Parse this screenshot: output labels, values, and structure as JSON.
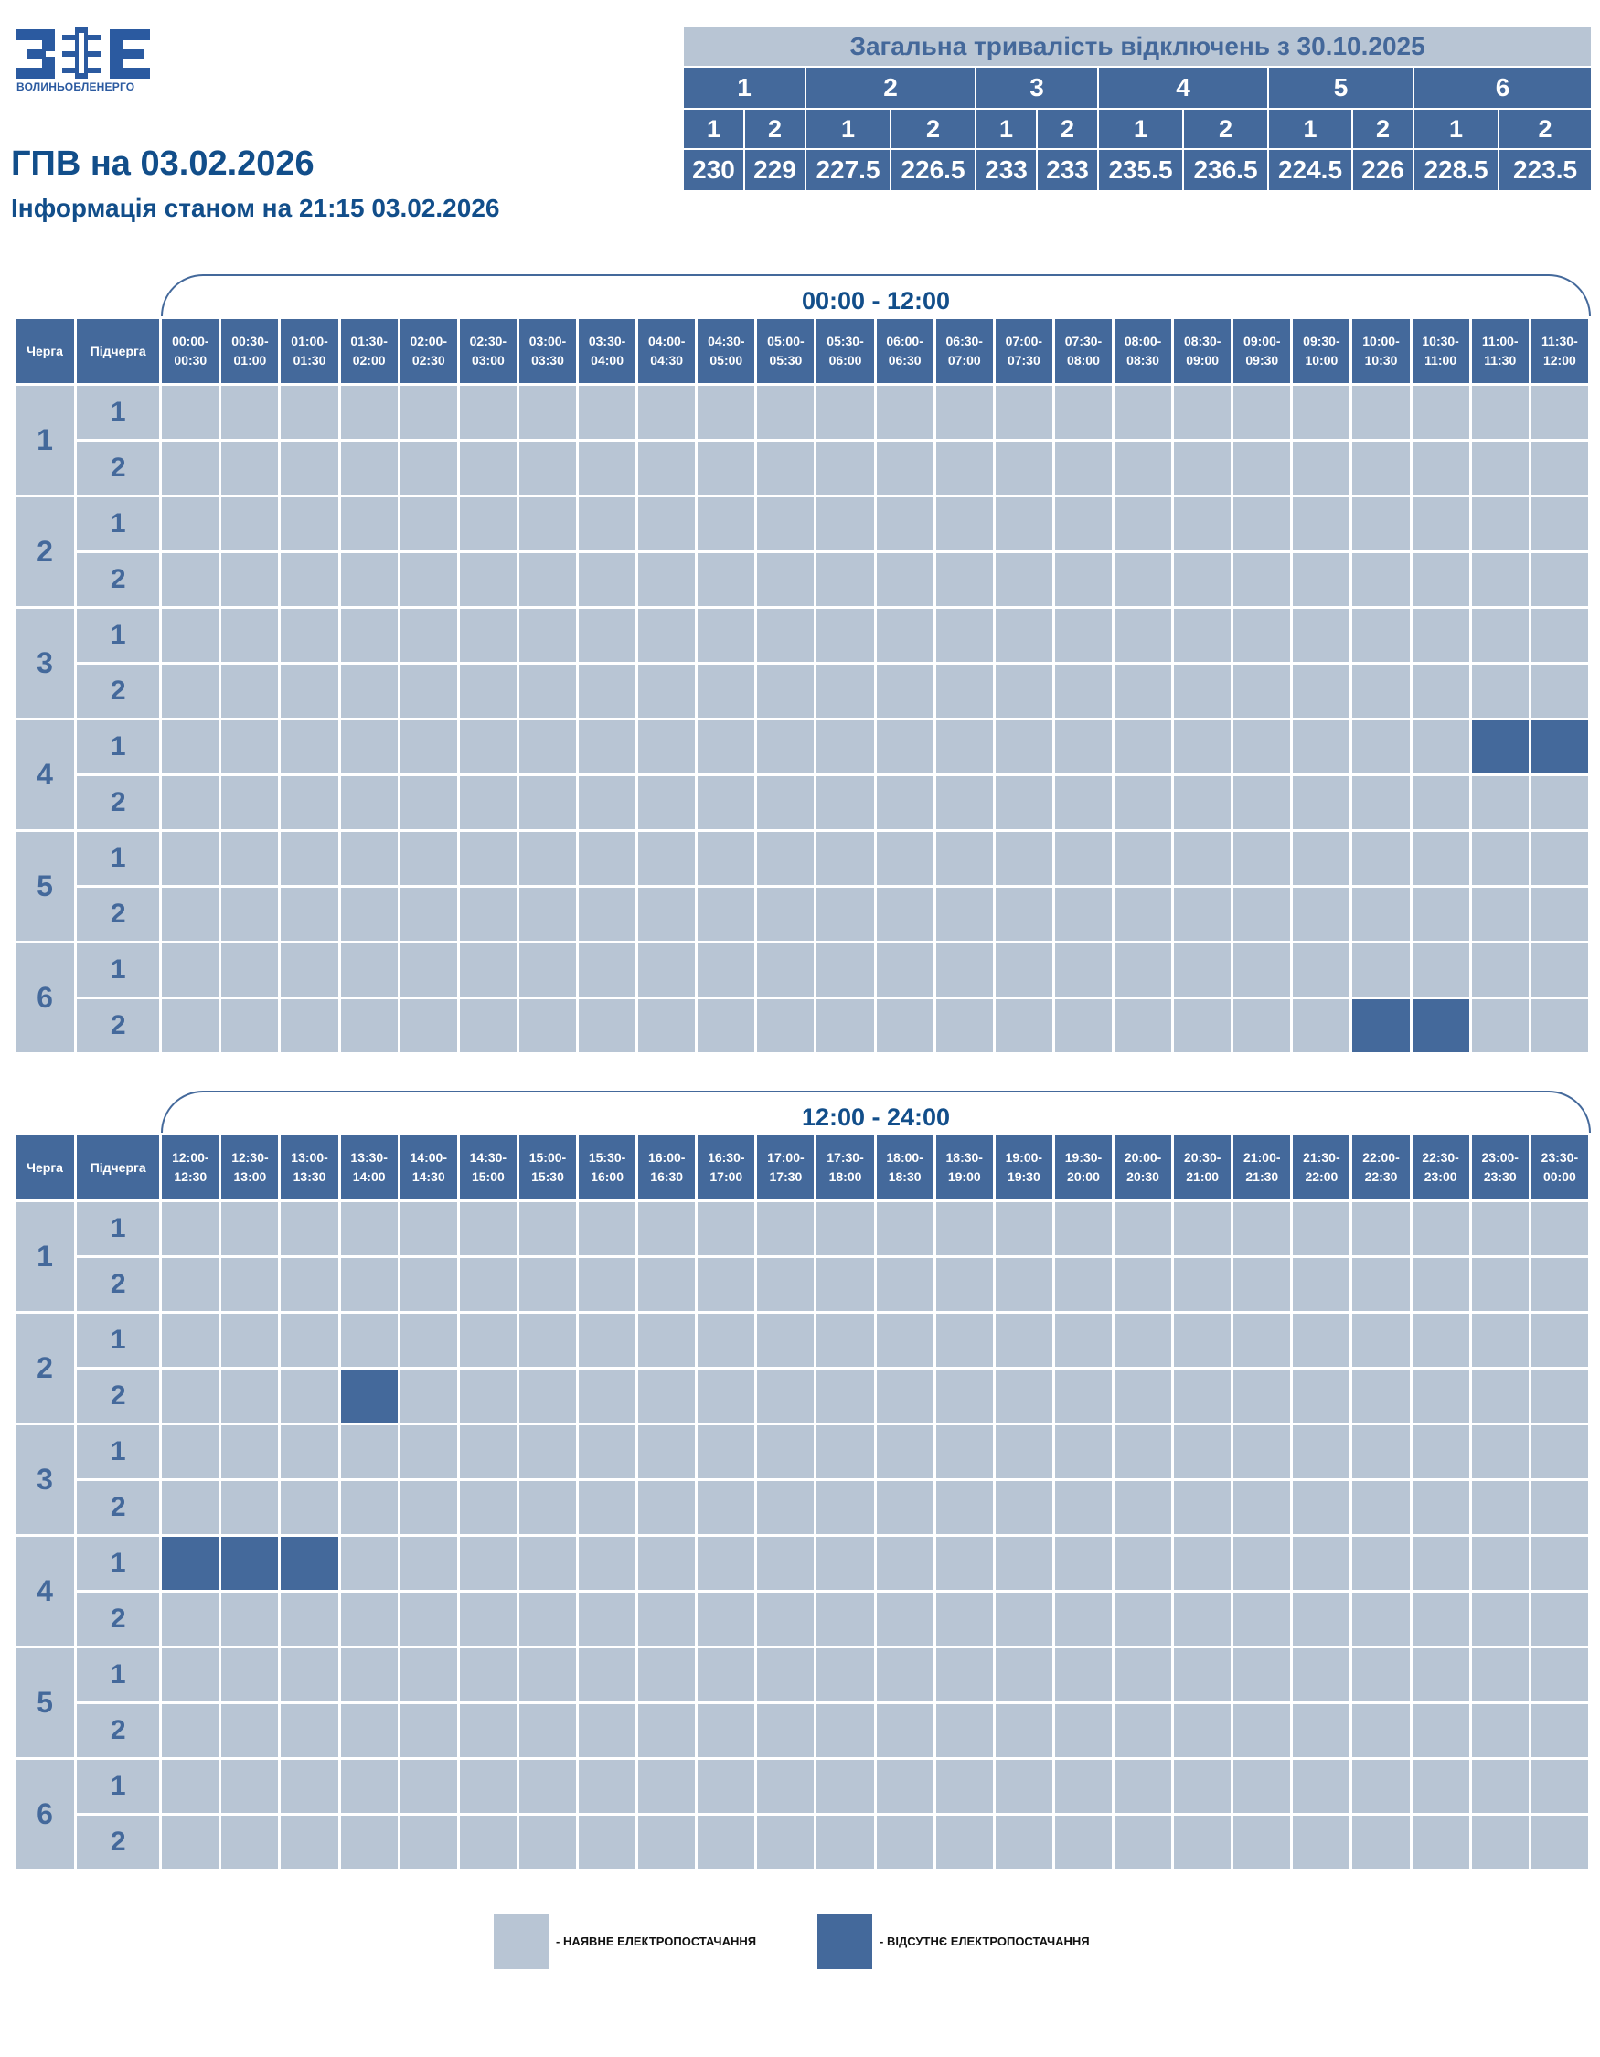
{
  "logo": {
    "text": "ВОЛИНЬОБЛЕНЕРГО"
  },
  "header": {
    "title": "ГПВ на 03.02.2026",
    "subtitle": "Інформація станом на 21:15 03.02.2026"
  },
  "summary": {
    "title": "Загальна тривалість відключень з 30.10.2025",
    "queues": [
      "1",
      "2",
      "3",
      "4",
      "5",
      "6"
    ],
    "subqueues": [
      "1",
      "2",
      "1",
      "2",
      "1",
      "2",
      "1",
      "2",
      "1",
      "2",
      "1",
      "2"
    ],
    "values": [
      "230",
      "229",
      "227.5",
      "226.5",
      "233",
      "233",
      "235.5",
      "236.5",
      "224.5",
      "226",
      "228.5",
      "223.5"
    ]
  },
  "schedule": {
    "queue_header": "Черга",
    "subqueue_header": "Підчерга",
    "halves": [
      {
        "range": "00:00 - 12:00",
        "slots": [
          "00:00-00:30",
          "00:30-01:00",
          "01:00-01:30",
          "01:30-02:00",
          "02:00-02:30",
          "02:30-03:00",
          "03:00-03:30",
          "03:30-04:00",
          "04:00-04:30",
          "04:30-05:00",
          "05:00-05:30",
          "05:30-06:00",
          "06:00-06:30",
          "06:30-07:00",
          "07:00-07:30",
          "07:30-08:00",
          "08:00-08:30",
          "08:30-09:00",
          "09:00-09:30",
          "09:30-10:00",
          "10:00-10:30",
          "10:30-11:00",
          "11:00-11:30",
          "11:30-12:00"
        ],
        "rows": [
          {
            "queue": "1",
            "sub": "1",
            "off": []
          },
          {
            "queue": "1",
            "sub": "2",
            "off": []
          },
          {
            "queue": "2",
            "sub": "1",
            "off": []
          },
          {
            "queue": "2",
            "sub": "2",
            "off": []
          },
          {
            "queue": "3",
            "sub": "1",
            "off": []
          },
          {
            "queue": "3",
            "sub": "2",
            "off": []
          },
          {
            "queue": "4",
            "sub": "1",
            "off": [
              "11:00-11:30",
              "11:30-12:00"
            ]
          },
          {
            "queue": "4",
            "sub": "2",
            "off": []
          },
          {
            "queue": "5",
            "sub": "1",
            "off": []
          },
          {
            "queue": "5",
            "sub": "2",
            "off": []
          },
          {
            "queue": "6",
            "sub": "1",
            "off": []
          },
          {
            "queue": "6",
            "sub": "2",
            "off": [
              "10:00-10:30",
              "10:30-11:00"
            ]
          }
        ]
      },
      {
        "range": "12:00 - 24:00",
        "slots": [
          "12:00-12:30",
          "12:30-13:00",
          "13:00-13:30",
          "13:30-14:00",
          "14:00-14:30",
          "14:30-15:00",
          "15:00-15:30",
          "15:30-16:00",
          "16:00-16:30",
          "16:30-17:00",
          "17:00-17:30",
          "17:30-18:00",
          "18:00-18:30",
          "18:30-19:00",
          "19:00-19:30",
          "19:30-20:00",
          "20:00-20:30",
          "20:30-21:00",
          "21:00-21:30",
          "21:30-22:00",
          "22:00-22:30",
          "22:30-23:00",
          "23:00-23:30",
          "23:30-00:00"
        ],
        "rows": [
          {
            "queue": "1",
            "sub": "1",
            "off": []
          },
          {
            "queue": "1",
            "sub": "2",
            "off": []
          },
          {
            "queue": "2",
            "sub": "1",
            "off": []
          },
          {
            "queue": "2",
            "sub": "2",
            "off": [
              "13:30-14:00"
            ]
          },
          {
            "queue": "3",
            "sub": "1",
            "off": []
          },
          {
            "queue": "3",
            "sub": "2",
            "off": []
          },
          {
            "queue": "4",
            "sub": "1",
            "off": [
              "12:00-12:30",
              "12:30-13:00",
              "13:00-13:30"
            ]
          },
          {
            "queue": "4",
            "sub": "2",
            "off": []
          },
          {
            "queue": "5",
            "sub": "1",
            "off": []
          },
          {
            "queue": "5",
            "sub": "2",
            "off": []
          },
          {
            "queue": "6",
            "sub": "1",
            "off": []
          },
          {
            "queue": "6",
            "sub": "2",
            "off": []
          }
        ]
      }
    ]
  },
  "legend": {
    "on_label": "- НАЯВНЕ ЕЛЕКТРОПОСТАЧАННЯ",
    "off_label": "- ВІДСУТНЄ ЕЛЕКТРОПОСТАЧАННЯ"
  },
  "colors": {
    "power_on": "#b8c5d4",
    "power_off": "#44699b",
    "header_bg": "#44699b",
    "title_text": "#124e8a"
  }
}
